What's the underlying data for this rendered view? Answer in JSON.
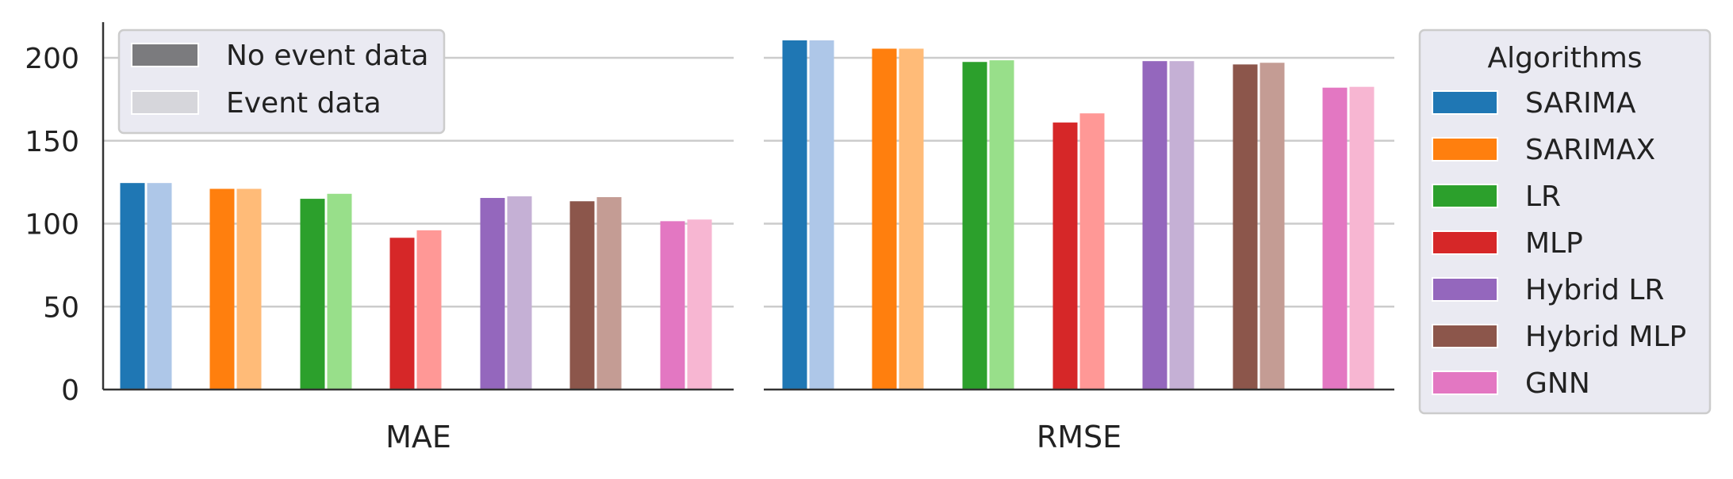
{
  "chart_data": {
    "type": "bar",
    "panels": [
      "MAE",
      "RMSE"
    ],
    "yticks": [
      0,
      50,
      100,
      150,
      200
    ],
    "ylim": [
      0,
      222
    ],
    "grid": true,
    "legend_style": {
      "location": "top-left",
      "entries": [
        {
          "label": "No event data",
          "color": "#7b7b7e"
        },
        {
          "label": "Event data",
          "color": "#d6d6db"
        }
      ]
    },
    "legend_algorithms": {
      "title": "Algorithms",
      "location": "right",
      "entries": [
        {
          "label": "SARIMA",
          "color": "#1f77b4"
        },
        {
          "label": "SARIMAX",
          "color": "#ff7f0e"
        },
        {
          "label": "LR",
          "color": "#2ca02c"
        },
        {
          "label": "MLP",
          "color": "#d62728"
        },
        {
          "label": "Hybrid LR",
          "color": "#9467bd"
        },
        {
          "label": "Hybrid MLP",
          "color": "#8c564b"
        },
        {
          "label": "GNN",
          "color": "#e377c2"
        }
      ]
    },
    "series": [
      {
        "name": "SARIMA",
        "dark": "#1f77b4",
        "light": "#aec7e8",
        "no_event": [
          124.5,
          210.5
        ],
        "event": [
          124.5,
          210.5
        ]
      },
      {
        "name": "SARIMAX",
        "dark": "#ff7f0e",
        "light": "#ffbb78",
        "no_event": [
          121.0,
          205.5
        ],
        "event": [
          121.0,
          205.5
        ]
      },
      {
        "name": "LR",
        "dark": "#2ca02c",
        "light": "#98df8a",
        "no_event": [
          115.0,
          197.5
        ],
        "event": [
          118.0,
          198.5
        ]
      },
      {
        "name": "MLP",
        "dark": "#d62728",
        "light": "#ff9896",
        "no_event": [
          91.5,
          161.0
        ],
        "event": [
          96.0,
          166.5
        ]
      },
      {
        "name": "Hybrid LR",
        "dark": "#9467bd",
        "light": "#c5b0d5",
        "no_event": [
          115.5,
          198.0
        ],
        "event": [
          116.5,
          198.0
        ]
      },
      {
        "name": "Hybrid MLP",
        "dark": "#8c564b",
        "light": "#c49c94",
        "no_event": [
          113.5,
          196.0
        ],
        "event": [
          116.0,
          197.0
        ]
      },
      {
        "name": "GNN",
        "dark": "#e377c2",
        "light": "#f7b6d2",
        "no_event": [
          101.5,
          182.0
        ],
        "event": [
          102.5,
          182.5
        ]
      }
    ]
  }
}
